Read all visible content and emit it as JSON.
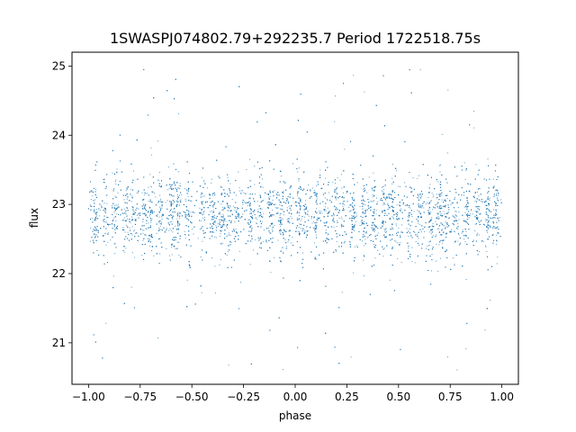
{
  "chart_data": {
    "type": "scatter",
    "title": "1SWASPJ074802.79+292235.7 Period 1722518.75s",
    "xlabel": "phase",
    "ylabel": "flux",
    "xlim": [
      -1.08,
      1.08
    ],
    "ylim": [
      20.4,
      25.2
    ],
    "xticks": [
      -1.0,
      -0.75,
      -0.5,
      -0.25,
      0.0,
      0.25,
      0.5,
      0.75,
      1.0
    ],
    "xtick_labels": [
      "−1.00",
      "−0.75",
      "−0.50",
      "−0.25",
      "0.00",
      "0.25",
      "0.50",
      "0.75",
      "1.00"
    ],
    "yticks": [
      21,
      22,
      23,
      24,
      25
    ],
    "ytick_labels": [
      "21",
      "22",
      "23",
      "24",
      "25"
    ],
    "grid": false,
    "marker_color": "#1f77b4",
    "series": [
      {
        "distribution": {
          "x_range": [
            -1.0,
            1.0
          ],
          "core_flux_range": [
            21.8,
            23.4
          ],
          "typical_flux": 22.85,
          "outlier_flux_range": [
            20.6,
            25.0
          ],
          "phase_clusters": [
            -0.97,
            -0.92,
            -0.87,
            -0.82,
            -0.79,
            -0.73,
            -0.7,
            -0.65,
            -0.6,
            -0.57,
            -0.52,
            -0.45,
            -0.4,
            -0.35,
            -0.32,
            -0.28,
            -0.22,
            -0.17,
            -0.12,
            -0.07,
            -0.03,
            0.02,
            0.05,
            0.1,
            0.15,
            0.2,
            0.23,
            0.28,
            0.33,
            0.38,
            0.43,
            0.47,
            0.5,
            0.55,
            0.6,
            0.65,
            0.7,
            0.73,
            0.78,
            0.83,
            0.88,
            0.93,
            0.97
          ]
        }
      }
    ]
  }
}
